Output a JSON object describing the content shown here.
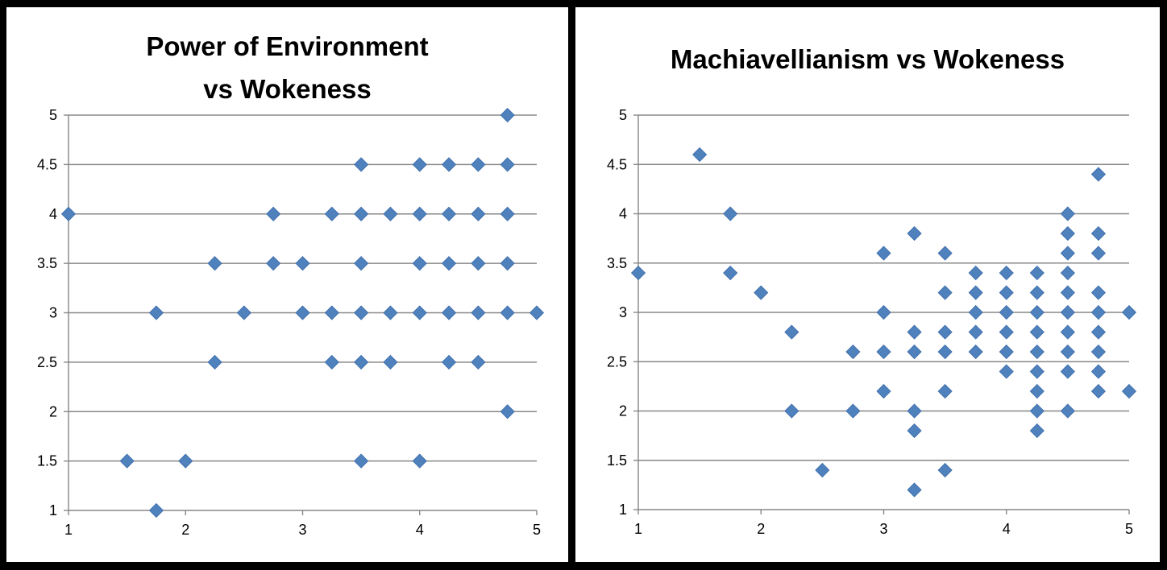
{
  "chart_data": [
    {
      "type": "scatter",
      "title_lines": [
        "Power of Environment",
        "vs Wokeness"
      ],
      "xlim": [
        1,
        5
      ],
      "ylim": [
        1,
        5
      ],
      "xticks": [
        "1",
        "2",
        "3",
        "4",
        "5"
      ],
      "yticks": [
        "1",
        "1.5",
        "2",
        "2.5",
        "3",
        "3.5",
        "4",
        "4.5",
        "5"
      ],
      "grid": "horizontal",
      "marker": "diamond",
      "color": "#4F81BD",
      "points": [
        [
          4.75,
          5
        ],
        [
          3.5,
          4.5
        ],
        [
          4,
          4.5
        ],
        [
          4.25,
          4.5
        ],
        [
          4.5,
          4.5
        ],
        [
          4.75,
          4.5
        ],
        [
          1,
          4
        ],
        [
          2.75,
          4
        ],
        [
          3.25,
          4
        ],
        [
          3.5,
          4
        ],
        [
          3.75,
          4
        ],
        [
          4,
          4
        ],
        [
          4.25,
          4
        ],
        [
          4.5,
          4
        ],
        [
          4.75,
          4
        ],
        [
          2.25,
          3.5
        ],
        [
          2.75,
          3.5
        ],
        [
          3,
          3.5
        ],
        [
          3.5,
          3.5
        ],
        [
          4,
          3.5
        ],
        [
          4.25,
          3.5
        ],
        [
          4.5,
          3.5
        ],
        [
          4.75,
          3.5
        ],
        [
          1.75,
          3
        ],
        [
          2.5,
          3
        ],
        [
          3,
          3
        ],
        [
          3.25,
          3
        ],
        [
          3.5,
          3
        ],
        [
          3.75,
          3
        ],
        [
          4,
          3
        ],
        [
          4.25,
          3
        ],
        [
          4.5,
          3
        ],
        [
          4.75,
          3
        ],
        [
          5,
          3
        ],
        [
          2.25,
          2.5
        ],
        [
          3.25,
          2.5
        ],
        [
          3.5,
          2.5
        ],
        [
          3.75,
          2.5
        ],
        [
          4.25,
          2.5
        ],
        [
          4.5,
          2.5
        ],
        [
          4.75,
          2
        ],
        [
          1.5,
          1.5
        ],
        [
          2,
          1.5
        ],
        [
          3.5,
          1.5
        ],
        [
          4,
          1.5
        ],
        [
          1.75,
          1
        ]
      ]
    },
    {
      "type": "scatter",
      "title_lines": [
        "Machiavellianism  vs Wokeness"
      ],
      "xlim": [
        1,
        5
      ],
      "ylim": [
        1,
        5
      ],
      "xticks": [
        "1",
        "2",
        "3",
        "4",
        "5"
      ],
      "yticks": [
        "1",
        "1.5",
        "2",
        "2.5",
        "3",
        "3.5",
        "4",
        "4.5",
        "5"
      ],
      "grid": "horizontal",
      "marker": "diamond",
      "color": "#4F81BD",
      "points": [
        [
          1,
          3.4
        ],
        [
          1.5,
          4.6
        ],
        [
          1.75,
          4.0
        ],
        [
          1.75,
          3.4
        ],
        [
          2,
          3.2
        ],
        [
          2.25,
          2.8
        ],
        [
          2.25,
          2.0
        ],
        [
          2.5,
          1.4
        ],
        [
          2.75,
          2.6
        ],
        [
          2.75,
          2.0
        ],
        [
          3,
          3.6
        ],
        [
          3,
          3.0
        ],
        [
          3,
          2.6
        ],
        [
          3,
          2.2
        ],
        [
          3.25,
          3.8
        ],
        [
          3.25,
          2.8
        ],
        [
          3.25,
          2.6
        ],
        [
          3.25,
          2.0
        ],
        [
          3.25,
          1.8
        ],
        [
          3.25,
          1.2
        ],
        [
          3.5,
          3.6
        ],
        [
          3.5,
          3.2
        ],
        [
          3.5,
          2.8
        ],
        [
          3.5,
          2.6
        ],
        [
          3.5,
          2.2
        ],
        [
          3.5,
          1.4
        ],
        [
          3.75,
          3.4
        ],
        [
          3.75,
          3.2
        ],
        [
          3.75,
          3.0
        ],
        [
          3.75,
          2.8
        ],
        [
          3.75,
          2.6
        ],
        [
          4,
          3.4
        ],
        [
          4,
          3.2
        ],
        [
          4,
          3.0
        ],
        [
          4,
          2.8
        ],
        [
          4,
          2.6
        ],
        [
          4,
          2.4
        ],
        [
          4.25,
          3.4
        ],
        [
          4.25,
          3.2
        ],
        [
          4.25,
          3.0
        ],
        [
          4.25,
          2.8
        ],
        [
          4.25,
          2.6
        ],
        [
          4.25,
          2.4
        ],
        [
          4.25,
          2.2
        ],
        [
          4.25,
          2.0
        ],
        [
          4.25,
          1.8
        ],
        [
          4.5,
          4.0
        ],
        [
          4.5,
          3.8
        ],
        [
          4.5,
          3.6
        ],
        [
          4.5,
          3.4
        ],
        [
          4.5,
          3.2
        ],
        [
          4.5,
          3.0
        ],
        [
          4.5,
          2.8
        ],
        [
          4.5,
          2.6
        ],
        [
          4.5,
          2.4
        ],
        [
          4.5,
          2.0
        ],
        [
          4.75,
          4.4
        ],
        [
          4.75,
          3.8
        ],
        [
          4.75,
          3.6
        ],
        [
          4.75,
          3.2
        ],
        [
          4.75,
          3.0
        ],
        [
          4.75,
          2.8
        ],
        [
          4.75,
          2.6
        ],
        [
          4.75,
          2.4
        ],
        [
          4.75,
          2.2
        ],
        [
          5,
          3.0
        ],
        [
          5,
          2.2
        ]
      ]
    }
  ]
}
